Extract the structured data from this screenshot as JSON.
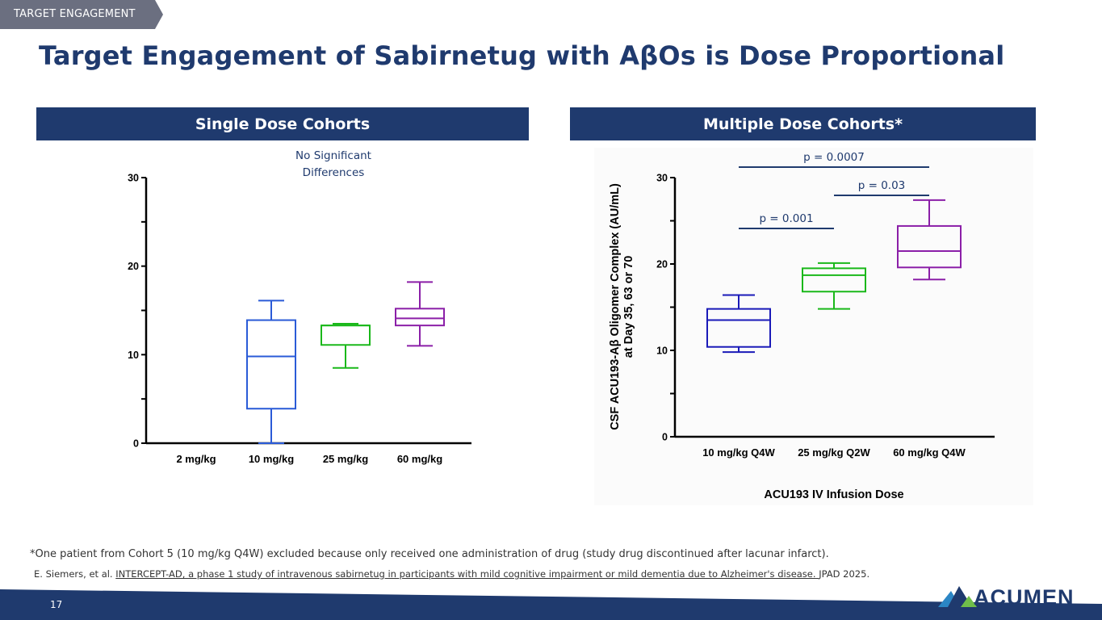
{
  "section_tag": "TARGET ENGAGEMENT",
  "title": "Target Engagement of Sabirnetug with AβOs is Dose Proportional",
  "left_panel": {
    "header": "Single Dose Cohorts",
    "note_line1": "No Significant",
    "note_line2": "Differences"
  },
  "right_panel": {
    "header": "Multiple Dose Cohorts*"
  },
  "chart_data": [
    {
      "type": "box",
      "title": "",
      "xlabel": "",
      "ylabel": "",
      "ylim": [
        0,
        30
      ],
      "yticks": [
        "0",
        "10",
        "20",
        "30"
      ],
      "categories": [
        "2 mg/kg",
        "10 mg/kg",
        "25 mg/kg",
        "60 mg/kg"
      ],
      "boxes": [
        null,
        {
          "min": 0,
          "q1": 3.9,
          "median": 9.8,
          "q3": 13.9,
          "max": 16.1,
          "color": "#2a5bd7"
        },
        {
          "min": 8.5,
          "q1": 11.1,
          "median": 13.3,
          "q3": 13.3,
          "max": 13.5,
          "color": "#1ab81a"
        },
        {
          "min": 11.0,
          "q1": 13.3,
          "median": 14.1,
          "q3": 15.2,
          "max": 18.2,
          "color": "#8b1fa8"
        }
      ],
      "annotation": "No Significant Differences"
    },
    {
      "type": "box",
      "title": "",
      "xlabel": "ACU193 IV Infusion Dose",
      "ylabel": "CSF ACU193-Aβ Oligomer Complex (AU/mL) at Day 35, 63 or 70",
      "ylim": [
        0,
        30
      ],
      "yticks": [
        "0",
        "10",
        "20",
        "30"
      ],
      "categories": [
        "10 mg/kg Q4W",
        "25 mg/kg Q2W",
        "60 mg/kg Q4W"
      ],
      "boxes": [
        {
          "min": 9.8,
          "q1": 10.4,
          "median": 13.5,
          "q3": 14.8,
          "max": 16.4,
          "color": "#1a1ab8"
        },
        {
          "min": 14.8,
          "q1": 16.8,
          "median": 18.7,
          "q3": 19.5,
          "max": 20.1,
          "color": "#1ab81a"
        },
        {
          "min": 18.2,
          "q1": 19.6,
          "median": 21.5,
          "q3": 24.4,
          "max": 27.4,
          "color": "#8b1fa8"
        }
      ],
      "comparisons": [
        {
          "from": "10 mg/kg Q4W",
          "to": "60 mg/kg Q4W",
          "label": "p = 0.0007"
        },
        {
          "from": "25 mg/kg Q2W",
          "to": "60 mg/kg Q4W",
          "label": "p = 0.03"
        },
        {
          "from": "10 mg/kg Q4W",
          "to": "25 mg/kg Q2W",
          "label": "p = 0.001"
        }
      ]
    }
  ],
  "footnote": "*One patient from Cohort 5 (10 mg/kg Q4W) excluded because only received one administration of drug (study drug discontinued after lacunar infarct).",
  "citation": {
    "prefix": "E. Siemers, et al. ",
    "link": "INTERCEPT-AD, a phase 1 study of intravenous sabirnetug in participants with mild cognitive impairment or mild dementia due to Alzheimer's disease. ",
    "suffix": "JPAD 2025."
  },
  "page_number": "17",
  "logo_text": "ACUMEN",
  "colors": {
    "navy": "#1f3a6e",
    "tag_gray": "#6b6f80"
  }
}
